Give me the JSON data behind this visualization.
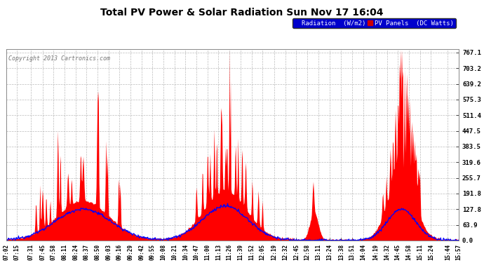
{
  "title": "Total PV Power & Solar Radiation Sun Nov 17 16:04",
  "copyright": "Copyright 2013 Cartronics.com",
  "background_color": "#ffffff",
  "plot_bg_color": "#ffffff",
  "grid_color": "#aaaaaa",
  "red_color": "#ff0000",
  "blue_color": "#0000ff",
  "yticks": [
    0.0,
    63.9,
    127.8,
    191.8,
    255.7,
    319.6,
    383.5,
    447.5,
    511.4,
    575.3,
    639.2,
    703.2,
    767.1
  ],
  "ymax": 780,
  "legend_labels": [
    "Radiation  (W/m2)",
    "PV Panels  (DC Watts)"
  ],
  "xtick_labels": [
    "07:02",
    "07:15",
    "07:31",
    "07:45",
    "07:58",
    "08:11",
    "08:24",
    "08:37",
    "08:50",
    "09:03",
    "09:16",
    "09:29",
    "09:42",
    "09:55",
    "10:08",
    "10:21",
    "10:34",
    "10:47",
    "11:00",
    "11:13",
    "11:26",
    "11:39",
    "11:52",
    "12:05",
    "12:19",
    "12:32",
    "12:45",
    "12:58",
    "13:11",
    "13:24",
    "13:38",
    "13:51",
    "14:04",
    "14:19",
    "14:32",
    "14:45",
    "14:58",
    "15:11",
    "15:24",
    "15:44",
    "15:57"
  ]
}
